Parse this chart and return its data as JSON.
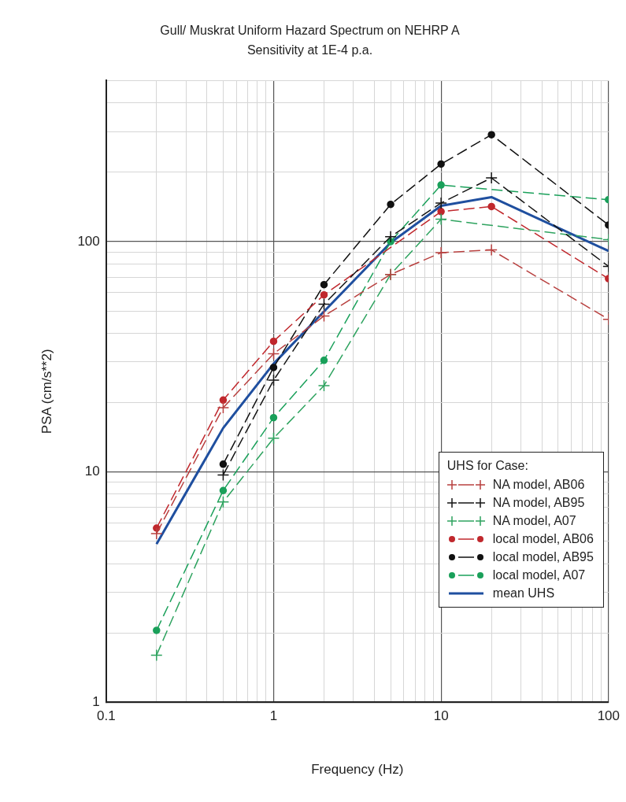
{
  "chart_data": {
    "type": "line",
    "title": "Gull/ Muskrat Uniform Hazard Spectrum on NEHRP A",
    "subtitle": "Sensitivity at 1E-4 p.a.",
    "xlabel": "Frequency (Hz)",
    "ylabel": "PSA (cm/s**2)",
    "legend_title": "UHS for Case:",
    "legend": "bottom right",
    "grid": true,
    "log": "xy",
    "xlim": [
      0.1,
      100
    ],
    "ylim": [
      1,
      500
    ],
    "xticks": [
      0.1,
      {
        "value": 0.2,
        "label": null
      },
      {
        "value": 0.3,
        "label": null
      },
      {
        "value": 0.4,
        "label": null
      },
      {
        "value": 0.5,
        "label": null
      },
      {
        "value": 0.6,
        "label": null
      },
      {
        "value": 0.7,
        "label": null
      },
      {
        "value": 0.8,
        "label": null
      },
      {
        "value": 0.9,
        "label": null
      },
      1,
      {
        "value": 2,
        "label": null
      },
      {
        "value": 3,
        "label": null
      },
      {
        "value": 4,
        "label": null
      },
      {
        "value": 5,
        "label": null
      },
      {
        "value": 6,
        "label": null
      },
      {
        "value": 7,
        "label": null
      },
      {
        "value": 8,
        "label": null
      },
      {
        "value": 9,
        "label": null
      },
      10,
      {
        "value": 20,
        "label": null
      },
      {
        "value": 30,
        "label": null
      },
      {
        "value": 40,
        "label": null
      },
      {
        "value": 50,
        "label": null
      },
      {
        "value": 60,
        "label": null
      },
      {
        "value": 70,
        "label": null
      },
      {
        "value": 80,
        "label": null
      },
      {
        "value": 90,
        "label": null
      },
      100
    ],
    "yticks": [
      1,
      {
        "value": 2,
        "label": null
      },
      {
        "value": 3,
        "label": null
      },
      {
        "value": 4,
        "label": null
      },
      {
        "value": 5,
        "label": null
      },
      {
        "value": 6,
        "label": null
      },
      {
        "value": 7,
        "label": null
      },
      {
        "value": 8,
        "label": null
      },
      {
        "value": 9,
        "label": null
      },
      10,
      {
        "value": 20,
        "label": null
      },
      {
        "value": 30,
        "label": null
      },
      {
        "value": 40,
        "label": null
      },
      {
        "value": 50,
        "label": null
      },
      {
        "value": 60,
        "label": null
      },
      {
        "value": 70,
        "label": null
      },
      {
        "value": 80,
        "label": null
      },
      {
        "value": 90,
        "label": null
      },
      100,
      {
        "value": 200,
        "label": null
      },
      {
        "value": 300,
        "label": null
      },
      {
        "value": 400,
        "label": null
      },
      {
        "value": 500,
        "label": null
      }
    ],
    "series": [
      {
        "name": "NA model, AB06",
        "color": "#b8403f",
        "marker": "cross",
        "line_style": "dashed",
        "x": [
          0.2,
          0.5,
          1,
          2,
          5,
          10,
          20,
          100
        ],
        "values": [
          5.4,
          19,
          32.6,
          47.5,
          72,
          89.5,
          92,
          46
        ]
      },
      {
        "name": "NA model, AB95",
        "color": "#151515",
        "marker": "cross",
        "line_style": "dashed",
        "x": [
          0.5,
          1,
          2,
          5,
          10,
          20,
          100
        ],
        "values": [
          9.7,
          25,
          53.5,
          105,
          147,
          189,
          78
        ]
      },
      {
        "name": "NA model, A07",
        "color": "#2ea35f",
        "marker": "cross",
        "line_style": "dashed",
        "x": [
          0.2,
          0.5,
          1,
          2,
          5,
          10,
          100
        ],
        "values": [
          1.6,
          7.4,
          14,
          23.7,
          72,
          125,
          102
        ]
      },
      {
        "name": "local model, AB06",
        "color": "#c0282d",
        "marker": "circle",
        "line_style": "dashed",
        "x": [
          0.2,
          0.5,
          1,
          2,
          5,
          10,
          20,
          100
        ],
        "values": [
          5.7,
          20.5,
          36.9,
          58.7,
          null,
          135,
          142,
          69
        ]
      },
      {
        "name": "local model, AB95",
        "color": "#111111",
        "marker": "circle",
        "line_style": "dashed",
        "x": [
          0.5,
          1,
          2,
          5,
          10,
          20,
          100
        ],
        "values": [
          10.8,
          28.4,
          65,
          145,
          217,
          291,
          118
        ]
      },
      {
        "name": "local model, A07",
        "color": "#1aa05a",
        "marker": "circle",
        "line_style": "dashed",
        "x": [
          0.2,
          0.5,
          1,
          2,
          5,
          10,
          100
        ],
        "values": [
          2.05,
          8.3,
          17.2,
          30.5,
          100,
          176,
          152
        ]
      },
      {
        "name": "mean UHS",
        "color": "#1f4f9f",
        "marker": "none",
        "line_style": "solid",
        "x": [
          0.2,
          0.5,
          1,
          2,
          5,
          10,
          20,
          100
        ],
        "values": [
          4.86,
          15.5,
          29.5,
          49.7,
          99,
          143,
          156,
          91
        ]
      }
    ]
  }
}
